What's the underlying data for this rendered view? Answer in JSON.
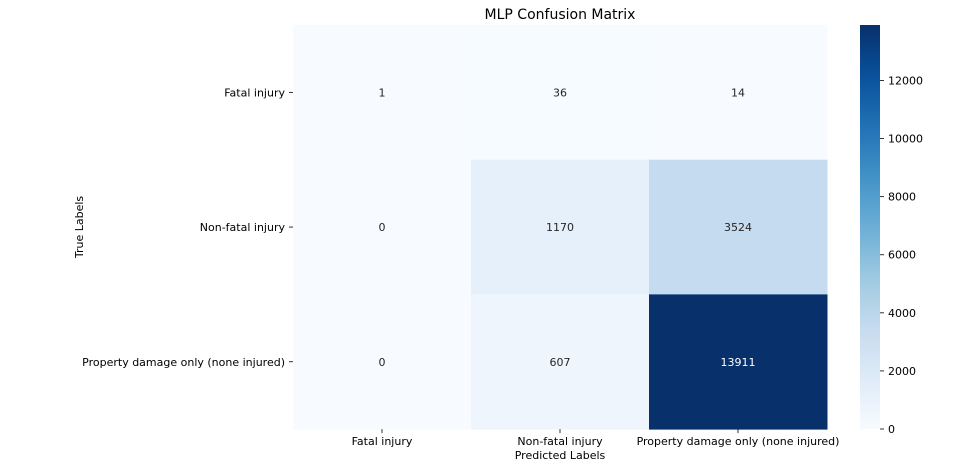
{
  "chart_data": {
    "type": "heatmap",
    "title": "MLP Confusion Matrix",
    "xlabel": "Predicted Labels",
    "ylabel": "True Labels",
    "x_categories": [
      "Fatal injury",
      "Non-fatal injury",
      "Property damage only (none injured)"
    ],
    "y_categories": [
      "Fatal injury",
      "Non-fatal injury",
      "Property damage only (none injured)"
    ],
    "values": [
      [
        1,
        36,
        14
      ],
      [
        0,
        1170,
        3524
      ],
      [
        0,
        607,
        13911
      ]
    ],
    "colormap": "Blues",
    "colorbar": {
      "min": 0,
      "max": 13911,
      "ticks": [
        0,
        2000,
        4000,
        6000,
        8000,
        10000,
        12000
      ]
    },
    "colors": {
      "low": "#f7fbff",
      "high": "#08306b",
      "text_dark": "#262626",
      "text_light": "#ffffff"
    }
  }
}
